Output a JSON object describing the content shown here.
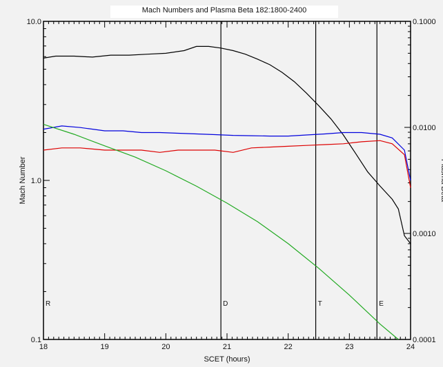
{
  "chart_data": {
    "type": "line",
    "title": "Mach Numbers and Plasma Beta  182:1800-2400",
    "xlabel": "SCET (hours)",
    "ylabel": "Mach Number",
    "y2label": "Plasma Beta",
    "x_ticks": [
      "18",
      "19",
      "20",
      "21",
      "22",
      "23",
      "24"
    ],
    "xlim": [
      18,
      24
    ],
    "y_scale": "log",
    "ylim": [
      0.1,
      10.0
    ],
    "y_ticks": [
      "0.1",
      "1.0",
      "10.0"
    ],
    "y2_scale": "log",
    "y2lim": [
      0.0001,
      0.1
    ],
    "y2_ticks": [
      "0.0001",
      "0.0010",
      "0.0100",
      "0.1000"
    ],
    "grid": false,
    "vlines": [
      {
        "x": 20.9,
        "label": "D"
      },
      {
        "x": 22.45,
        "label": "T"
      },
      {
        "x": 23.45,
        "label": "E"
      }
    ],
    "corner_label": {
      "x": 18.0,
      "label": "R"
    },
    "series": [
      {
        "color": "#000000",
        "axis": "right",
        "x": [
          18.0,
          18.2,
          18.5,
          18.8,
          19.1,
          19.4,
          19.7,
          20.0,
          20.3,
          20.5,
          20.7,
          20.9,
          21.1,
          21.3,
          21.5,
          21.7,
          21.9,
          22.1,
          22.3,
          22.5,
          22.7,
          22.9,
          23.1,
          23.3,
          23.5,
          23.7,
          23.8,
          23.9,
          24.0
        ],
        "y": [
          0.045,
          0.047,
          0.047,
          0.046,
          0.048,
          0.048,
          0.049,
          0.05,
          0.053,
          0.058,
          0.058,
          0.056,
          0.053,
          0.049,
          0.044,
          0.039,
          0.033,
          0.027,
          0.021,
          0.016,
          0.012,
          0.0085,
          0.0057,
          0.0038,
          0.0028,
          0.0021,
          0.0017,
          0.00095,
          0.0008
        ]
      },
      {
        "color": "#0000dd",
        "axis": "left",
        "x": [
          18.0,
          18.3,
          18.6,
          19.0,
          19.3,
          19.6,
          19.9,
          20.2,
          20.5,
          20.8,
          21.1,
          21.4,
          21.7,
          22.0,
          22.3,
          22.6,
          22.9,
          23.2,
          23.5,
          23.7,
          23.9,
          24.0
        ],
        "y": [
          2.1,
          2.2,
          2.15,
          2.05,
          2.05,
          2.0,
          2.0,
          1.98,
          1.96,
          1.94,
          1.92,
          1.91,
          1.9,
          1.9,
          1.93,
          1.96,
          2.0,
          2.0,
          1.95,
          1.85,
          1.55,
          1.0
        ]
      },
      {
        "color": "#dd0000",
        "axis": "left",
        "x": [
          18.0,
          18.3,
          18.6,
          19.0,
          19.3,
          19.6,
          19.9,
          20.2,
          20.5,
          20.8,
          21.1,
          21.4,
          21.7,
          22.0,
          22.3,
          22.6,
          22.9,
          23.2,
          23.5,
          23.7,
          23.9,
          24.0
        ],
        "y": [
          1.55,
          1.6,
          1.6,
          1.55,
          1.55,
          1.55,
          1.5,
          1.55,
          1.55,
          1.55,
          1.5,
          1.6,
          1.62,
          1.64,
          1.66,
          1.68,
          1.7,
          1.75,
          1.78,
          1.7,
          1.45,
          0.9
        ]
      },
      {
        "color": "#22aa22",
        "axis": "left",
        "x": [
          18.0,
          18.5,
          19.0,
          19.5,
          20.0,
          20.5,
          21.0,
          21.5,
          22.0,
          22.5,
          23.0,
          23.5,
          23.8
        ],
        "y": [
          2.25,
          1.95,
          1.65,
          1.4,
          1.15,
          0.92,
          0.72,
          0.55,
          0.4,
          0.28,
          0.19,
          0.125,
          0.1
        ]
      }
    ]
  }
}
